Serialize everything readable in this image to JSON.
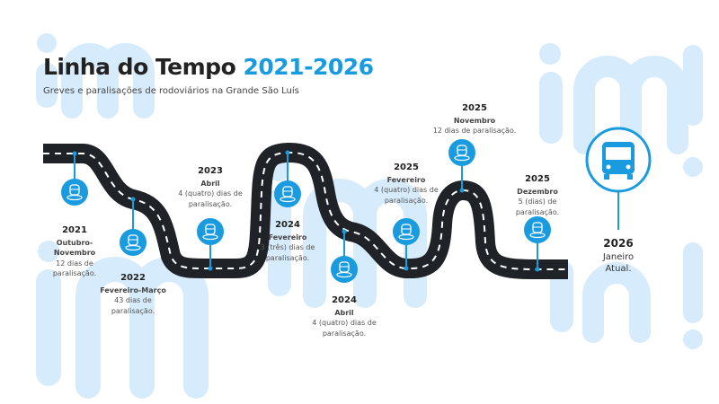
{
  "watermark": "im!",
  "header": {
    "title_text": "Linha do Tempo",
    "title_years": "2021-2026",
    "subtitle": "Greves e paralisações de rodoviários na Grande São Luís"
  },
  "colors": {
    "accent": "#1a9be0",
    "road": "#1f2328",
    "watermark": "#d6ebfb"
  },
  "events": [
    {
      "year": "2021",
      "period": "Outubro-Novembro",
      "desc": "12 dias de paralisação.",
      "icon": "bus-stop-icon"
    },
    {
      "year": "2022",
      "period": "Fevereiro-Março",
      "desc": "43 dias de paralisação.",
      "icon": "bus-stop-icon"
    },
    {
      "year": "2023",
      "period": "Abril",
      "desc": "4 (quatro) dias de paralisação.",
      "icon": "bus-stop-icon"
    },
    {
      "year": "2024",
      "period": "Fevereiro",
      "desc": "3 (três) dias de paralisação.",
      "icon": "bus-stop-icon"
    },
    {
      "year": "2024",
      "period": "Abril",
      "desc": "4 (quatro) dias de paralisação.",
      "icon": "bus-stop-icon"
    },
    {
      "year": "2025",
      "period": "Fevereiro",
      "desc": "4 (quatro) dias de paralisação.",
      "icon": "bus-stop-icon"
    },
    {
      "year": "2025",
      "period": "Novembro",
      "desc": "12 dias de paralisação.",
      "icon": "bus-stop-icon"
    },
    {
      "year": "2025",
      "period": "Dezembro",
      "desc": "5 (dias) de paralisação.",
      "icon": "bus-stop-icon"
    }
  ],
  "final": {
    "year": "2026",
    "period": "Janeiro",
    "status": "Atual.",
    "icon": "bus-icon"
  }
}
